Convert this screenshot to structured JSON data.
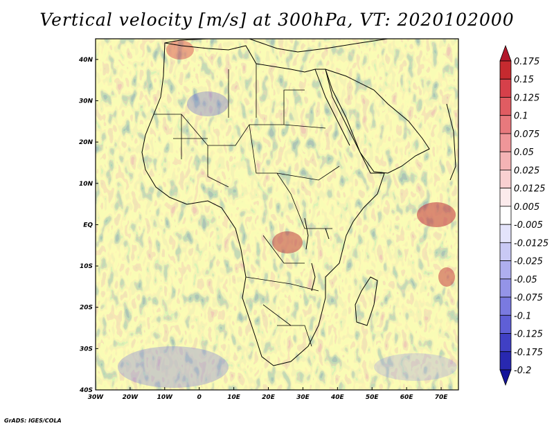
{
  "title": "Vertical velocity [m/s] at 300hPa, VT: 2020102000",
  "footer": "GrADS: IGES/COLA",
  "map": {
    "lat_labels": [
      "40N",
      "30N",
      "20N",
      "10N",
      "EQ",
      "10S",
      "20S",
      "30S",
      "40S"
    ],
    "lon_labels": [
      "30W",
      "20W",
      "10W",
      "0",
      "10E",
      "20E",
      "30E",
      "40E",
      "50E",
      "60E",
      "70E"
    ],
    "extent": {
      "lon_min": -30,
      "lon_max": 75,
      "lat_min": -40,
      "lat_max": 45
    }
  },
  "colorbar": {
    "labels": [
      "0.175",
      "0.15",
      "0.125",
      "0.1",
      "0.075",
      "0.05",
      "0.025",
      "0.0125",
      "0.005",
      "-0.005",
      "-0.0125",
      "-0.025",
      "-0.05",
      "-0.075",
      "-0.1",
      "-0.125",
      "-0.175",
      "-0.2"
    ],
    "colors": [
      "#b2182b",
      "#c62a2f",
      "#d6404a",
      "#e05c62",
      "#e8797d",
      "#ef9699",
      "#f4b3b5",
      "#f9d0d1",
      "#fcebec",
      "#ffffff",
      "#e4e4fb",
      "#c9c9f5",
      "#afafef",
      "#9494e8",
      "#7a7ae0",
      "#5f5fd6",
      "#4040c4",
      "#2828b0",
      "#14149a"
    ]
  }
}
